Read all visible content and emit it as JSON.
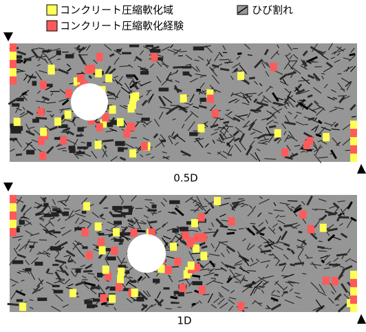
{
  "legend": {
    "items": [
      {
        "label": "コンクリート圧縮軟化域"
      },
      {
        "label": "コンクリート圧縮軟化経験"
      },
      {
        "label": "ひび割れ"
      }
    ]
  },
  "panels": [
    {
      "caption": "0.5D"
    },
    {
      "caption": "1D"
    }
  ]
}
